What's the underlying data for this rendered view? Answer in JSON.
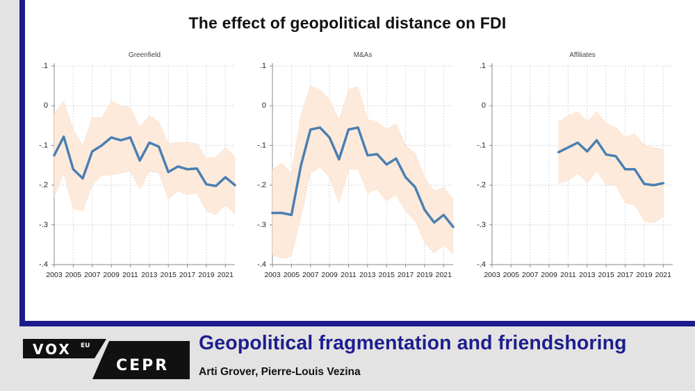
{
  "figure_title": "The effect of geopolitical distance on FDI",
  "footer": {
    "headline": "Geopolitical fragmentation and friendshoring",
    "authors": "Arti Grover, Pierre-Louis Vezina",
    "logo_vox": "VOX",
    "logo_eu": "EU",
    "logo_cepr": "CEPR"
  },
  "colors": {
    "frame": "#1c1c8c",
    "line": "#4a7fb2",
    "band": "#fde9da",
    "headline": "#1e1e8e"
  },
  "chart_data": [
    {
      "type": "line",
      "title": "Greenfield",
      "x_ticks": [
        "2003",
        "2005",
        "2007",
        "2009",
        "2011",
        "2013",
        "2015",
        "2017",
        "2019",
        "2021"
      ],
      "y_ticks": [
        ".1",
        "0",
        "-.1",
        "-.2",
        "-.3",
        "-.4"
      ],
      "ylim": [
        -0.4,
        0.1
      ],
      "xlim": [
        2003,
        2022
      ],
      "grid": true,
      "band_style": "confidence interval",
      "x": [
        2003,
        2004,
        2005,
        2006,
        2007,
        2008,
        2009,
        2010,
        2011,
        2012,
        2013,
        2014,
        2015,
        2016,
        2017,
        2018,
        2019,
        2020,
        2021,
        2022
      ],
      "y": [
        -0.125,
        -0.078,
        -0.16,
        -0.183,
        -0.115,
        -0.1,
        -0.08,
        -0.087,
        -0.08,
        -0.138,
        -0.093,
        -0.103,
        -0.167,
        -0.153,
        -0.16,
        -0.158,
        -0.198,
        -0.202,
        -0.18,
        -0.2
      ],
      "upper": [
        -0.02,
        0.012,
        -0.06,
        -0.1,
        -0.03,
        -0.03,
        0.012,
        0.0,
        -0.005,
        -0.055,
        -0.025,
        -0.04,
        -0.095,
        -0.092,
        -0.092,
        -0.095,
        -0.132,
        -0.13,
        -0.105,
        -0.13
      ],
      "lower": [
        -0.23,
        -0.17,
        -0.26,
        -0.265,
        -0.2,
        -0.175,
        -0.175,
        -0.17,
        -0.165,
        -0.21,
        -0.165,
        -0.17,
        -0.235,
        -0.215,
        -0.225,
        -0.22,
        -0.265,
        -0.275,
        -0.25,
        -0.272
      ]
    },
    {
      "type": "line",
      "title": "M&As",
      "x_ticks": [
        "2003",
        "2005",
        "2007",
        "2009",
        "2011",
        "2013",
        "2015",
        "2017",
        "2019",
        "2021"
      ],
      "y_ticks": [
        ".1",
        "0",
        "-.1",
        "-.2",
        "-.3",
        "-.4"
      ],
      "ylim": [
        -0.4,
        0.1
      ],
      "xlim": [
        2003,
        2022
      ],
      "grid": true,
      "band_style": "confidence interval",
      "x": [
        2003,
        2004,
        2005,
        2006,
        2007,
        2008,
        2009,
        2010,
        2011,
        2012,
        2013,
        2014,
        2015,
        2016,
        2017,
        2018,
        2019,
        2020,
        2021,
        2022
      ],
      "y": [
        -0.27,
        -0.27,
        -0.275,
        -0.15,
        -0.06,
        -0.055,
        -0.08,
        -0.135,
        -0.06,
        -0.055,
        -0.125,
        -0.122,
        -0.148,
        -0.133,
        -0.18,
        -0.205,
        -0.262,
        -0.294,
        -0.275,
        -0.305
      ],
      "upper": [
        -0.16,
        -0.145,
        -0.17,
        -0.02,
        0.05,
        0.04,
        0.015,
        -0.035,
        0.04,
        0.048,
        -0.035,
        -0.04,
        -0.06,
        -0.045,
        -0.1,
        -0.12,
        -0.18,
        -0.215,
        -0.205,
        -0.235
      ],
      "lower": [
        -0.375,
        -0.385,
        -0.38,
        -0.28,
        -0.17,
        -0.155,
        -0.18,
        -0.245,
        -0.16,
        -0.16,
        -0.22,
        -0.21,
        -0.24,
        -0.225,
        -0.265,
        -0.29,
        -0.345,
        -0.372,
        -0.35,
        -0.375
      ]
    },
    {
      "type": "line",
      "title": "Affiliates",
      "x_ticks": [
        "2003",
        "2005",
        "2007",
        "2009",
        "2011",
        "2013",
        "2015",
        "2017",
        "2019",
        "2021"
      ],
      "y_ticks": [
        ".1",
        "0",
        "-.1",
        "-.2",
        "-.3",
        "-.4"
      ],
      "ylim": [
        -0.4,
        0.1
      ],
      "xlim": [
        2003,
        2022
      ],
      "grid": true,
      "band_style": "confidence interval",
      "x": [
        2010,
        2011,
        2012,
        2013,
        2014,
        2015,
        2016,
        2017,
        2018,
        2019,
        2020,
        2021
      ],
      "y": [
        -0.117,
        -0.105,
        -0.093,
        -0.115,
        -0.087,
        -0.123,
        -0.127,
        -0.16,
        -0.16,
        -0.197,
        -0.2,
        -0.195
      ],
      "upper": [
        -0.04,
        -0.025,
        -0.015,
        -0.04,
        -0.015,
        -0.045,
        -0.055,
        -0.08,
        -0.07,
        -0.1,
        -0.105,
        -0.11
      ],
      "lower": [
        -0.195,
        -0.19,
        -0.17,
        -0.195,
        -0.165,
        -0.2,
        -0.2,
        -0.245,
        -0.25,
        -0.29,
        -0.295,
        -0.28
      ]
    }
  ]
}
